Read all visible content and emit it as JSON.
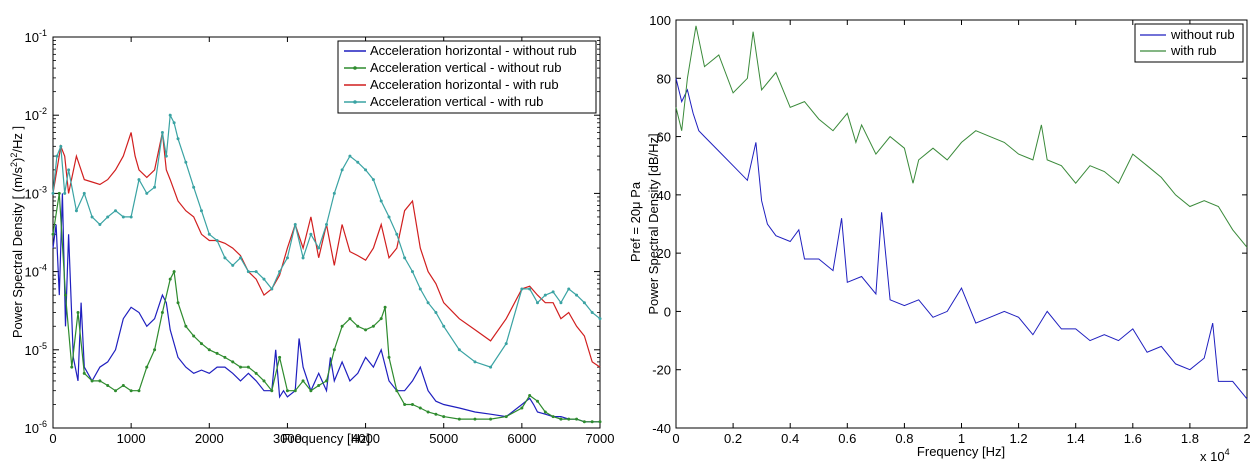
{
  "chart_data": [
    {
      "type": "line",
      "xlabel": "Frequency [Hz]",
      "ylabel": "Power Spectral Density [ (m/s²)²/Hz ]",
      "ylabel_parts": {
        "prefix": "Power Spectral Density [ (m/s",
        "exp2": "2",
        "mid": ")",
        "exp2b": "2",
        "suffix": "/Hz ]"
      },
      "xlim": [
        0,
        7000
      ],
      "ylim": [
        1e-06,
        0.1
      ],
      "y_scale": "log",
      "x_ticks": [
        "0",
        "1000",
        "2000",
        "3000",
        "4000",
        "5000",
        "6000",
        "7000"
      ],
      "y_ticks": [
        {
          "base": "10",
          "exp": "-6",
          "value": 1e-06
        },
        {
          "base": "10",
          "exp": "-5",
          "value": 1e-05
        },
        {
          "base": "10",
          "exp": "-4",
          "value": 0.0001
        },
        {
          "base": "10",
          "exp": "-3",
          "value": 0.001
        },
        {
          "base": "10",
          "exp": "-2",
          "value": 0.01
        },
        {
          "base": "10",
          "exp": "-1",
          "value": 0.1
        }
      ],
      "legend_position": "top-right",
      "series": [
        {
          "name": "Acceleration horizontal - without rub",
          "color": "#1f1fbf",
          "marker": false,
          "x": [
            0,
            40,
            80,
            120,
            160,
            200,
            260,
            320,
            360,
            400,
            500,
            600,
            700,
            800,
            900,
            1000,
            1100,
            1200,
            1300,
            1400,
            1450,
            1500,
            1600,
            1700,
            1800,
            1900,
            2000,
            2100,
            2200,
            2300,
            2400,
            2500,
            2600,
            2700,
            2800,
            2850,
            2900,
            2950,
            3000,
            3100,
            3150,
            3200,
            3300,
            3400,
            3500,
            3550,
            3600,
            3700,
            3800,
            3900,
            4000,
            4100,
            4200,
            4300,
            4400,
            4500,
            4600,
            4700,
            4800,
            4900,
            5000,
            5200,
            5400,
            5600,
            5800,
            6000,
            6100,
            6150,
            6200,
            6300,
            6400,
            6500,
            6600,
            6700,
            6800,
            6900,
            7000
          ],
          "y": [
            0.0002,
            0.0004,
            5e-05,
            0.001,
            2e-05,
            0.0003,
            8e-06,
            4e-06,
            4e-05,
            6e-06,
            4e-06,
            6e-06,
            7e-06,
            1e-05,
            2.5e-05,
            3.5e-05,
            3e-05,
            2e-05,
            2.5e-05,
            5e-05,
            4e-05,
            1.8e-05,
            8e-06,
            6e-06,
            5e-06,
            5.5e-06,
            5e-06,
            6e-06,
            6e-06,
            5e-06,
            4e-06,
            5e-06,
            4e-06,
            3e-06,
            3e-06,
            1e-05,
            2.5e-06,
            3e-06,
            2.5e-06,
            3e-06,
            1.4e-05,
            6e-06,
            3e-06,
            5e-06,
            3e-06,
            8e-06,
            4e-06,
            7e-06,
            4e-06,
            5e-06,
            8e-06,
            6e-06,
            1e-05,
            4e-06,
            3e-06,
            3e-06,
            4e-06,
            6e-06,
            3e-06,
            2.2e-06,
            2e-06,
            1.8e-06,
            1.6e-06,
            1.5e-06,
            1.4e-06,
            2e-06,
            2.4e-06,
            2e-06,
            1.6e-06,
            1.5e-06,
            1.4e-06,
            1.4e-06,
            1.3e-06,
            1.3e-06,
            1.2e-06,
            1.2e-06,
            1.2e-06
          ]
        },
        {
          "name": "Acceleration vertical - without rub",
          "color": "#2e8b2e",
          "marker": true,
          "x": [
            0,
            80,
            160,
            240,
            320,
            400,
            500,
            600,
            700,
            800,
            900,
            1000,
            1100,
            1200,
            1300,
            1400,
            1500,
            1550,
            1600,
            1700,
            1800,
            1900,
            2000,
            2100,
            2200,
            2300,
            2400,
            2500,
            2600,
            2700,
            2800,
            2900,
            3000,
            3100,
            3200,
            3300,
            3400,
            3500,
            3600,
            3700,
            3800,
            3900,
            4000,
            4100,
            4200,
            4250,
            4300,
            4400,
            4500,
            4600,
            4700,
            4800,
            4900,
            5000,
            5200,
            5400,
            5600,
            5800,
            6000,
            6100,
            6200,
            6300,
            6400,
            6500,
            6600,
            6700,
            6800,
            6900,
            7000
          ],
          "y": [
            0.0003,
            0.001,
            5e-05,
            6e-06,
            3e-05,
            5e-06,
            4e-06,
            4e-06,
            3.5e-06,
            3e-06,
            3.5e-06,
            3e-06,
            3e-06,
            6e-06,
            1e-05,
            3e-05,
            8e-05,
            0.0001,
            4e-05,
            2e-05,
            1.5e-05,
            1.2e-05,
            1e-05,
            9e-06,
            8e-06,
            7e-06,
            6e-06,
            6e-06,
            5e-06,
            4e-06,
            3e-06,
            8e-06,
            3e-06,
            3e-06,
            4e-06,
            3e-06,
            3.5e-06,
            4e-06,
            1e-05,
            2e-05,
            2.5e-05,
            2e-05,
            1.8e-05,
            2e-05,
            2.5e-05,
            3.5e-05,
            8e-06,
            3e-06,
            2e-06,
            2e-06,
            1.8e-06,
            1.6e-06,
            1.5e-06,
            1.4e-06,
            1.3e-06,
            1.3e-06,
            1.3e-06,
            1.4e-06,
            1.8e-06,
            2.6e-06,
            2.2e-06,
            1.6e-06,
            1.4e-06,
            1.3e-06,
            1.3e-06,
            1.3e-06,
            1.2e-06,
            1.2e-06,
            1.2e-06
          ]
        },
        {
          "name": "Acceleration horizontal - with rub",
          "color": "#d11f1f",
          "marker": false,
          "x": [
            0,
            50,
            100,
            150,
            200,
            300,
            400,
            500,
            600,
            700,
            800,
            900,
            1000,
            1050,
            1100,
            1200,
            1300,
            1400,
            1450,
            1500,
            1600,
            1700,
            1800,
            1900,
            2000,
            2100,
            2200,
            2300,
            2400,
            2500,
            2600,
            2700,
            2800,
            2900,
            3000,
            3100,
            3200,
            3300,
            3400,
            3500,
            3600,
            3700,
            3800,
            3900,
            4000,
            4100,
            4200,
            4300,
            4400,
            4500,
            4600,
            4700,
            4800,
            4900,
            5000,
            5200,
            5400,
            5600,
            5800,
            6000,
            6100,
            6200,
            6300,
            6400,
            6500,
            6600,
            6700,
            6800,
            6900,
            7000
          ],
          "y": [
            0.001,
            0.002,
            0.004,
            0.003,
            0.001,
            0.003,
            0.0015,
            0.0014,
            0.0013,
            0.0015,
            0.002,
            0.003,
            0.006,
            0.003,
            0.002,
            0.0016,
            0.002,
            0.006,
            0.002,
            0.0015,
            0.0008,
            0.0006,
            0.0005,
            0.0003,
            0.00025,
            0.00025,
            0.00023,
            0.0002,
            0.00016,
            0.0001,
            8e-05,
            5e-05,
            6e-05,
            9e-05,
            0.0002,
            0.0004,
            0.0002,
            0.0005,
            0.00015,
            0.0004,
            0.00012,
            0.0004,
            0.00018,
            0.00016,
            0.00014,
            0.0002,
            0.0004,
            0.00015,
            0.0002,
            0.0006,
            0.0008,
            0.0002,
            0.0001,
            7e-05,
            4e-05,
            2.5e-05,
            1.8e-05,
            1.3e-05,
            2.5e-05,
            6e-05,
            6.5e-05,
            5e-05,
            4e-05,
            4e-05,
            2.5e-05,
            3e-05,
            2e-05,
            1.5e-05,
            7e-06,
            6e-06
          ]
        },
        {
          "name": "Acceleration vertical - with rub",
          "color": "#3aa3a3",
          "marker": true,
          "x": [
            0,
            50,
            100,
            150,
            200,
            300,
            400,
            500,
            600,
            700,
            800,
            900,
            1000,
            1100,
            1200,
            1300,
            1400,
            1450,
            1500,
            1550,
            1600,
            1700,
            1800,
            1900,
            2000,
            2100,
            2200,
            2300,
            2400,
            2500,
            2600,
            2700,
            2800,
            2900,
            3000,
            3100,
            3200,
            3300,
            3400,
            3500,
            3600,
            3700,
            3800,
            3900,
            4000,
            4100,
            4200,
            4300,
            4400,
            4500,
            4600,
            4700,
            4800,
            4900,
            5000,
            5200,
            5400,
            5600,
            5800,
            6000,
            6100,
            6200,
            6300,
            6400,
            6500,
            6600,
            6700,
            6800,
            6900,
            7000
          ],
          "y": [
            0.001,
            0.003,
            0.004,
            0.001,
            0.002,
            0.0006,
            0.001,
            0.0005,
            0.0004,
            0.0005,
            0.0006,
            0.0005,
            0.0005,
            0.0015,
            0.001,
            0.0012,
            0.006,
            0.003,
            0.01,
            0.008,
            0.005,
            0.0025,
            0.0012,
            0.0006,
            0.0003,
            0.00025,
            0.00015,
            0.00012,
            0.00015,
            0.0001,
            0.0001,
            8e-05,
            6e-05,
            0.0001,
            0.00015,
            0.0004,
            0.00015,
            0.0003,
            0.0002,
            0.0004,
            0.001,
            0.002,
            0.003,
            0.0025,
            0.002,
            0.0015,
            0.0008,
            0.0005,
            0.0003,
            0.00015,
            0.0001,
            6e-05,
            4e-05,
            3e-05,
            2e-05,
            1e-05,
            7e-06,
            6e-06,
            1.2e-05,
            6e-05,
            6e-05,
            4e-05,
            5e-05,
            5.5e-05,
            4e-05,
            6e-05,
            5e-05,
            4e-05,
            3e-05,
            2.5e-05
          ]
        }
      ]
    },
    {
      "type": "line",
      "xlabel": "Frequency [Hz]",
      "ylabel": "Power Spectral Density    [dB/Hz]",
      "ylabel2": "Pref =  20μ Pa",
      "x_multiplier": "x 10",
      "x_multiplier_exp": "4",
      "xlim": [
        0,
        20000
      ],
      "ylim": [
        -40,
        100
      ],
      "x_ticks": [
        "0",
        "0.2",
        "0.4",
        "0.6",
        "0.8",
        "1",
        "1.2",
        "1.4",
        "1.6",
        "1.8",
        "2"
      ],
      "y_ticks": [
        "-40",
        "-20",
        "0",
        "20",
        "40",
        "60",
        "80",
        "100"
      ],
      "legend_position": "top-right",
      "series": [
        {
          "name": "without rub",
          "color": "#1f1fbf",
          "x": [
            0,
            200,
            400,
            600,
            800,
            1000,
            1500,
            2000,
            2500,
            2800,
            3000,
            3200,
            3500,
            4000,
            4300,
            4500,
            5000,
            5500,
            5800,
            6000,
            6500,
            7000,
            7200,
            7500,
            8000,
            8500,
            9000,
            9500,
            10000,
            10500,
            11000,
            11500,
            12000,
            12500,
            13000,
            13500,
            14000,
            14500,
            15000,
            15500,
            16000,
            16500,
            17000,
            17500,
            18000,
            18500,
            18800,
            19000,
            19500,
            20000
          ],
          "y": [
            80,
            72,
            76,
            68,
            62,
            60,
            55,
            50,
            45,
            58,
            38,
            30,
            26,
            24,
            28,
            18,
            18,
            14,
            32,
            10,
            12,
            6,
            34,
            4,
            2,
            4,
            -2,
            0,
            8,
            -4,
            -2,
            0,
            -2,
            -8,
            0,
            -6,
            -6,
            -10,
            -8,
            -10,
            -6,
            -14,
            -12,
            -18,
            -20,
            -16,
            -4,
            -24,
            -24,
            -30
          ]
        },
        {
          "name": "with rub",
          "color": "#3a8a3a",
          "x": [
            0,
            200,
            400,
            700,
            1000,
            1500,
            2000,
            2500,
            2700,
            3000,
            3500,
            4000,
            4500,
            5000,
            5500,
            6000,
            6300,
            6500,
            7000,
            7500,
            8000,
            8300,
            8500,
            9000,
            9500,
            10000,
            10500,
            11000,
            11500,
            12000,
            12500,
            12800,
            13000,
            13500,
            14000,
            14500,
            15000,
            15500,
            16000,
            16500,
            17000,
            17500,
            18000,
            18500,
            19000,
            19500,
            20000
          ],
          "y": [
            70,
            62,
            80,
            98,
            84,
            88,
            75,
            80,
            96,
            76,
            82,
            70,
            72,
            66,
            62,
            68,
            58,
            64,
            54,
            60,
            56,
            44,
            52,
            56,
            52,
            58,
            62,
            60,
            58,
            54,
            52,
            64,
            52,
            50,
            44,
            50,
            48,
            44,
            54,
            50,
            46,
            40,
            36,
            38,
            36,
            28,
            22
          ]
        }
      ]
    }
  ]
}
